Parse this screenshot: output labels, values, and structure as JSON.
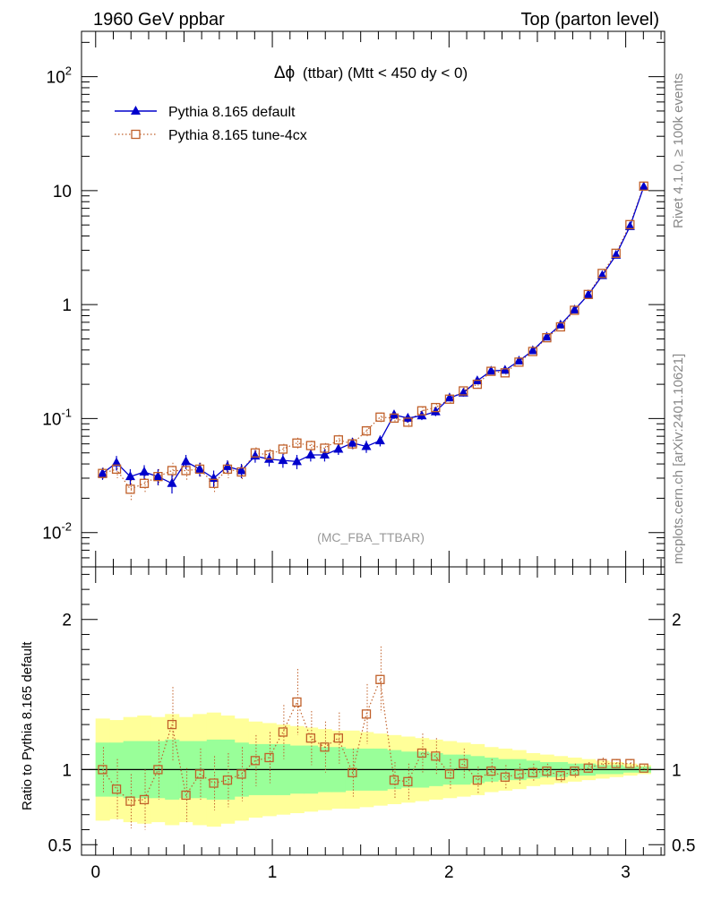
{
  "header": {
    "left_label": "1960 GeV ppbar",
    "right_label": "Top (parton level)"
  },
  "side_labels": {
    "rivet": "Rivet 4.1.0, ≥ 100k events",
    "mcplots": "mcplots.cern.ch [arXiv:2401.10621]"
  },
  "chart_data": {
    "type": "line",
    "title_symbol": "Δϕ",
    "title_text": "(ttbar) (Mtt < 450 dy < 0)",
    "watermark": "(MC_FBA_TTBAR)",
    "xlim": [
      -0.08,
      3.22
    ],
    "ylim": [
      0.005,
      250
    ],
    "yscale": "log",
    "x_ticks": [
      "0",
      "1",
      "2",
      "3"
    ],
    "y_ticks": [
      "10^-2",
      "10^-1",
      "1",
      "10",
      "10^2"
    ],
    "legend_position": "top-left",
    "x": [
      0.039,
      0.118,
      0.196,
      0.275,
      0.353,
      0.432,
      0.511,
      0.589,
      0.668,
      0.746,
      0.825,
      0.903,
      0.982,
      1.06,
      1.139,
      1.217,
      1.296,
      1.374,
      1.453,
      1.532,
      1.61,
      1.689,
      1.767,
      1.846,
      1.924,
      2.003,
      2.081,
      2.16,
      2.238,
      2.317,
      2.396,
      2.474,
      2.553,
      2.631,
      2.71,
      2.788,
      2.867,
      2.945,
      3.024,
      3.102
    ],
    "series": [
      {
        "name": "Pythia 8.165 default",
        "color": "#0000cc",
        "marker": "triangle",
        "values": [
          0.033,
          0.041,
          0.031,
          0.034,
          0.031,
          0.027,
          0.042,
          0.036,
          0.03,
          0.038,
          0.035,
          0.047,
          0.044,
          0.043,
          0.042,
          0.048,
          0.048,
          0.054,
          0.061,
          0.057,
          0.064,
          0.108,
          0.101,
          0.106,
          0.115,
          0.152,
          0.168,
          0.215,
          0.262,
          0.266,
          0.321,
          0.395,
          0.52,
          0.665,
          0.9,
          1.22,
          1.8,
          2.72,
          4.85,
          10.8
        ],
        "errors": [
          0.004,
          0.006,
          0.005,
          0.005,
          0.005,
          0.005,
          0.006,
          0.005,
          0.005,
          0.005,
          0.005,
          0.006,
          0.006,
          0.006,
          0.006,
          0.006,
          0.006,
          0.006,
          0.007,
          0.007,
          0.007,
          0.009,
          0.009,
          0.009,
          0.01,
          0.01,
          0.012,
          0.013,
          0.014,
          0.014,
          0.016,
          0.018,
          0.02,
          0.024,
          0.03,
          0.04,
          0.05,
          0.07,
          0.1,
          0.15
        ]
      },
      {
        "name": "Pythia 8.165 tune-4cx",
        "color": "#c0602a",
        "marker": "open-square",
        "values": [
          0.033,
          0.036,
          0.024,
          0.027,
          0.031,
          0.035,
          0.035,
          0.036,
          0.027,
          0.036,
          0.034,
          0.05,
          0.048,
          0.054,
          0.061,
          0.058,
          0.055,
          0.065,
          0.06,
          0.078,
          0.103,
          0.101,
          0.093,
          0.117,
          0.125,
          0.148,
          0.175,
          0.2,
          0.26,
          0.252,
          0.313,
          0.388,
          0.512,
          0.638,
          0.892,
          1.228,
          1.878,
          2.822,
          5.036,
          10.96
        ],
        "errors": [
          0.004,
          0.006,
          0.005,
          0.005,
          0.005,
          0.006,
          0.006,
          0.005,
          0.005,
          0.006,
          0.005,
          0.006,
          0.006,
          0.006,
          0.007,
          0.006,
          0.006,
          0.007,
          0.007,
          0.008,
          0.01,
          0.009,
          0.009,
          0.01,
          0.01,
          0.011,
          0.012,
          0.013,
          0.014,
          0.014,
          0.016,
          0.018,
          0.02,
          0.024,
          0.03,
          0.04,
          0.05,
          0.07,
          0.1,
          0.15
        ]
      }
    ],
    "ratio": {
      "ylabel": "Ratio to Pythia 8.165 default",
      "ylim": [
        0.43,
        2.35
      ],
      "y_ticks": [
        "0.5",
        "1",
        "2"
      ],
      "values": [
        1.0,
        0.87,
        0.79,
        0.8,
        1.0,
        1.3,
        0.83,
        0.97,
        0.91,
        0.93,
        0.97,
        1.06,
        1.08,
        1.25,
        1.45,
        1.21,
        1.15,
        1.21,
        0.98,
        1.37,
        1.6,
        0.93,
        0.92,
        1.11,
        1.09,
        0.97,
        1.04,
        0.93,
        0.99,
        0.95,
        0.97,
        0.98,
        0.99,
        0.96,
        0.99,
        1.01,
        1.04,
        1.04,
        1.04,
        1.01
      ],
      "errors": [
        0.15,
        0.2,
        0.18,
        0.2,
        0.2,
        0.25,
        0.18,
        0.17,
        0.18,
        0.18,
        0.18,
        0.17,
        0.17,
        0.18,
        0.22,
        0.18,
        0.17,
        0.17,
        0.16,
        0.2,
        0.22,
        0.12,
        0.12,
        0.13,
        0.12,
        0.1,
        0.1,
        0.09,
        0.08,
        0.08,
        0.07,
        0.06,
        0.05,
        0.05,
        0.05,
        0.04,
        0.04,
        0.03,
        0.03,
        0.02
      ],
      "band_inner": [
        0.18,
        0.18,
        0.19,
        0.19,
        0.19,
        0.2,
        0.19,
        0.19,
        0.2,
        0.2,
        0.18,
        0.17,
        0.17,
        0.17,
        0.16,
        0.16,
        0.15,
        0.15,
        0.14,
        0.14,
        0.14,
        0.13,
        0.12,
        0.12,
        0.11,
        0.1,
        0.1,
        0.09,
        0.08,
        0.07,
        0.07,
        0.06,
        0.05,
        0.05,
        0.04,
        0.04,
        0.03,
        0.03,
        0.02,
        0.02
      ],
      "band_outer": [
        0.34,
        0.33,
        0.35,
        0.36,
        0.35,
        0.37,
        0.35,
        0.37,
        0.38,
        0.36,
        0.34,
        0.32,
        0.31,
        0.3,
        0.29,
        0.28,
        0.27,
        0.26,
        0.26,
        0.25,
        0.24,
        0.23,
        0.22,
        0.21,
        0.2,
        0.19,
        0.18,
        0.17,
        0.15,
        0.14,
        0.13,
        0.11,
        0.1,
        0.09,
        0.08,
        0.07,
        0.06,
        0.05,
        0.04,
        0.03
      ],
      "band_inner_color": "#99ff99",
      "band_outer_color": "#ffff99"
    }
  }
}
